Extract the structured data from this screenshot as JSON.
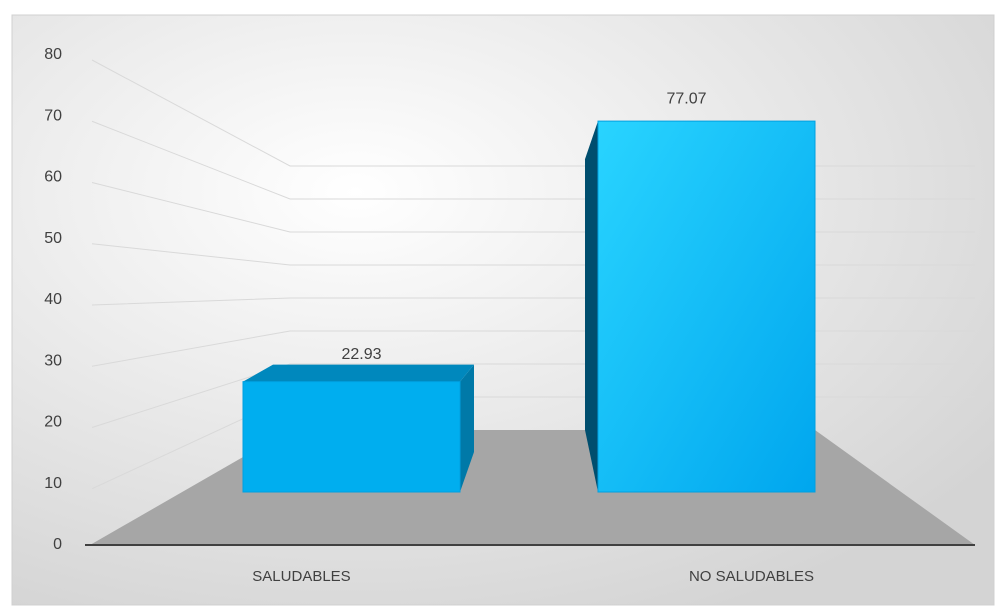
{
  "chart_data": {
    "type": "bar",
    "categories": [
      "SALUDABLES",
      "NO SALUDABLES"
    ],
    "values": [
      22.93,
      77.07
    ],
    "color": "#00aeef",
    "ylim": [
      0,
      80
    ],
    "yticks": [
      0,
      10,
      20,
      30,
      40,
      50,
      60,
      70,
      80
    ],
    "grid": true
  }
}
